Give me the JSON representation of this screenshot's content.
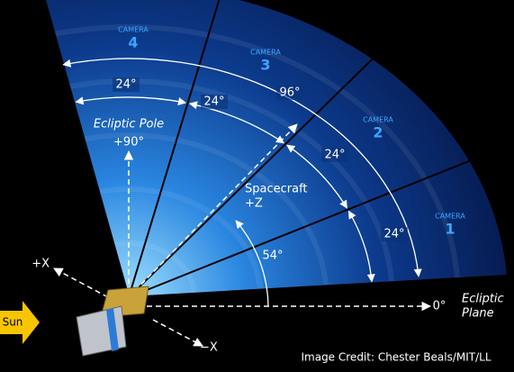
{
  "cameras": [
    {
      "label": "CAMERA",
      "number": "4"
    },
    {
      "label": "CAMERA",
      "number": "3"
    },
    {
      "label": "CAMERA",
      "number": "2"
    },
    {
      "label": "CAMERA",
      "number": "1"
    }
  ],
  "angles": {
    "camera_4": "24°",
    "camera_3": "24°",
    "camera_2": "24°",
    "camera_1": "24°",
    "total": "96°",
    "spacecraft": "54°",
    "zero": "0°",
    "pole": "+90°"
  },
  "labels": {
    "ecliptic_pole": "Ecliptic Pole",
    "spacecraft": "Spacecraft",
    "spacecraft_axis": "+Z",
    "ecliptic": "Ecliptic",
    "plane": "Plane",
    "plus_x": "+X",
    "minus_x": "−X",
    "sun": "Sun"
  },
  "credit": "Image Credit: Chester Beals/MIT/LL"
}
